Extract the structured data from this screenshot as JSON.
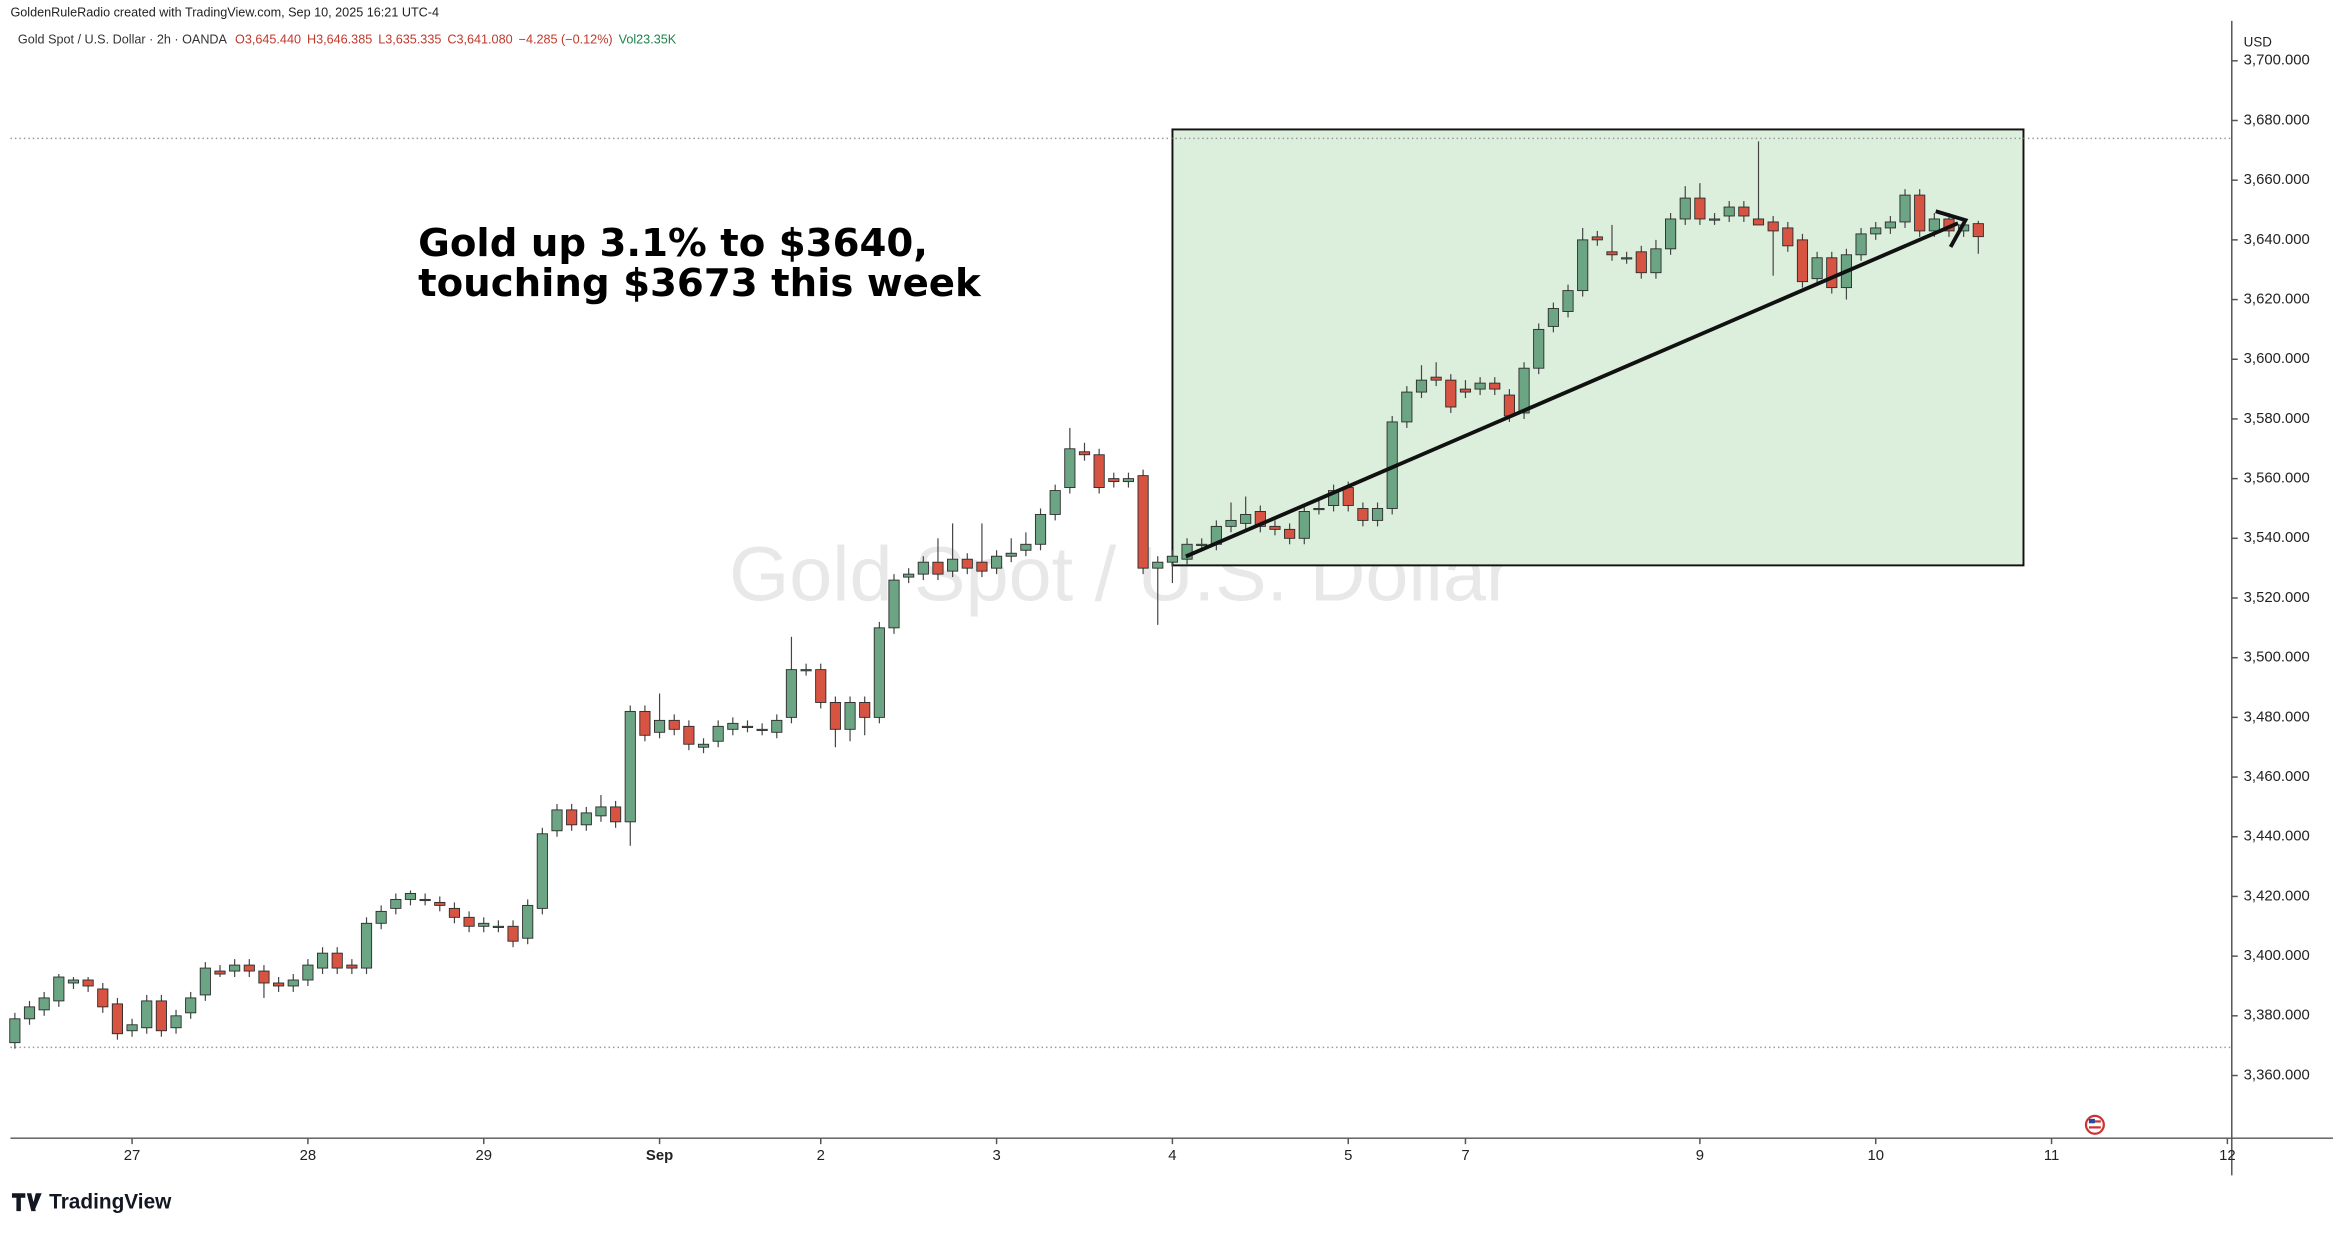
{
  "chart_data": {
    "type": "candlestick",
    "attribution": "GoldenRuleRadio created with TradingView.com, Sep 10, 2025 16:21 UTC-4",
    "title": "Gold Spot / U.S. Dollar · 2h · OANDA",
    "quote": [
      "O3,645.440",
      "H3,646.385",
      "L3,635.335",
      "C3,641.080",
      "−4.285 (−0.12%)",
      "Vol23.35K"
    ],
    "currency": "USD",
    "watermark": "Gold Spot / U.S. Dollar",
    "annotation": [
      "Gold up 3.1% to $3640,",
      "touching $3673 this week"
    ],
    "brand": "TradingView",
    "up_color": "#6ca584",
    "down_color": "#d75442",
    "grid": false,
    "open": [
      3371,
      3379,
      3382,
      3385,
      3391,
      3392,
      3389,
      3384,
      3375,
      3376,
      3385,
      3376,
      3381,
      3387,
      3395,
      3395,
      3397,
      3395,
      3391,
      3390,
      3392,
      3396,
      3401,
      3397,
      3396,
      3411,
      3416,
      3419,
      3419,
      3418,
      3416,
      3413,
      3410,
      3410,
      3410,
      3406,
      3416,
      3442,
      3449,
      3444,
      3447,
      3450,
      3445,
      3482,
      3475,
      3479,
      3477,
      3470,
      3472,
      3476,
      3477,
      3476,
      3475,
      3480,
      3496,
      3496,
      3485,
      3476,
      3485,
      3480,
      3510,
      3527,
      3528,
      3532,
      3529,
      3533,
      3532,
      3530,
      3534,
      3536,
      3538,
      3548,
      3557,
      3569,
      3568,
      3560,
      3559,
      3561,
      3530,
      3532,
      3533,
      3538,
      3538,
      3544,
      3545,
      3549,
      3544,
      3543,
      3540,
      3550,
      3551,
      3557,
      3550,
      3546,
      3550,
      3579,
      3589,
      3594,
      3593,
      3590,
      3590,
      3592,
      3588,
      3582,
      3597,
      3611,
      3616,
      3623,
      3641,
      3636,
      3634,
      3636,
      3629,
      3637,
      3647,
      3654,
      3647,
      3648,
      3651,
      3647,
      3646,
      3644,
      3640,
      3627,
      3634,
      3624,
      3635,
      3642,
      3644,
      3646,
      3655,
      3643,
      3647,
      3643,
      3645.44
    ],
    "high": [
      3381,
      3385,
      3388,
      3394,
      3393,
      3393,
      3391,
      3386,
      3379,
      3387,
      3387,
      3382,
      3388,
      3398,
      3397,
      3399,
      3399,
      3397,
      3393,
      3394,
      3399,
      3403,
      3403,
      3399,
      3413,
      3417,
      3421,
      3422,
      3421,
      3420,
      3418,
      3415,
      3413,
      3412,
      3412,
      3419,
      3443,
      3451,
      3451,
      3450,
      3454,
      3452,
      3484,
      3484,
      3488,
      3481,
      3479,
      3473,
      3479,
      3480,
      3479,
      3478,
      3481,
      3507,
      3498,
      3498,
      3487,
      3487,
      3487,
      3512,
      3528,
      3530,
      3534,
      3540,
      3545,
      3535,
      3545,
      3536,
      3540,
      3542,
      3550,
      3558,
      3577,
      3572,
      3570,
      3562,
      3562,
      3563,
      3534,
      3536,
      3540,
      3540,
      3546,
      3552,
      3554,
      3551,
      3546,
      3545,
      3551,
      3553,
      3558,
      3559,
      3552,
      3552,
      3581,
      3591,
      3598,
      3599,
      3595,
      3593,
      3594,
      3594,
      3590,
      3599,
      3612,
      3619,
      3625,
      3644,
      3643,
      3645,
      3636,
      3638,
      3640,
      3649,
      3658,
      3659,
      3649,
      3653,
      3653,
      3673,
      3648,
      3646,
      3642,
      3636,
      3636,
      3637,
      3644,
      3646,
      3648,
      3657,
      3657,
      3649,
      3649,
      3647,
      3646.385
    ],
    "low": [
      3369,
      3377,
      3380,
      3383,
      3389,
      3388,
      3381,
      3372,
      3373,
      3374,
      3373,
      3374,
      3379,
      3385,
      3393,
      3393,
      3393,
      3386,
      3388,
      3388,
      3390,
      3394,
      3394,
      3394,
      3394,
      3409,
      3414,
      3417,
      3417,
      3415,
      3411,
      3408,
      3408,
      3408,
      3403,
      3404,
      3414,
      3440,
      3442,
      3442,
      3445,
      3443,
      3437,
      3472,
      3473,
      3474,
      3469,
      3468,
      3470,
      3474,
      3475,
      3474,
      3473,
      3478,
      3494,
      3483,
      3470,
      3472,
      3474,
      3478,
      3508,
      3525,
      3526,
      3526,
      3527,
      3528,
      3527,
      3528,
      3532,
      3534,
      3536,
      3546,
      3555,
      3566,
      3555,
      3557,
      3557,
      3528,
      3511,
      3525,
      3531,
      3536,
      3536,
      3542,
      3543,
      3542,
      3541,
      3538,
      3538,
      3548,
      3549,
      3549,
      3544,
      3544,
      3548,
      3577,
      3587,
      3591,
      3582,
      3587,
      3588,
      3588,
      3579,
      3580,
      3595,
      3609,
      3614,
      3621,
      3638,
      3633,
      3632,
      3627,
      3627,
      3635,
      3645,
      3645,
      3645,
      3646,
      3646,
      3645,
      3628,
      3636,
      3624,
      3625,
      3622,
      3620,
      3633,
      3640,
      3642,
      3644,
      3641,
      3641,
      3641,
      3641,
      3635.335
    ],
    "close": [
      3379,
      3383,
      3386,
      3393,
      3392,
      3390,
      3383,
      3374,
      3377,
      3385,
      3375,
      3380,
      3386,
      3396,
      3394,
      3397,
      3395,
      3391,
      3390,
      3392,
      3397,
      3401,
      3396,
      3396,
      3411,
      3415,
      3419,
      3421,
      3419,
      3417,
      3413,
      3410,
      3411,
      3410,
      3405,
      3417,
      3441,
      3449,
      3444,
      3448,
      3450,
      3445,
      3482,
      3474,
      3479,
      3476,
      3471,
      3471,
      3477,
      3478,
      3477,
      3476,
      3479,
      3496,
      3496,
      3485,
      3476,
      3485,
      3480,
      3510,
      3526,
      3528,
      3532,
      3528,
      3533,
      3530,
      3529,
      3534,
      3535,
      3538,
      3548,
      3556,
      3570,
      3568,
      3557,
      3559,
      3560,
      3530,
      3532,
      3534,
      3538,
      3538,
      3544,
      3546,
      3548,
      3544,
      3543,
      3540,
      3549,
      3550,
      3556,
      3551,
      3546,
      3550,
      3579,
      3589,
      3593,
      3593,
      3584,
      3589,
      3592,
      3590,
      3581,
      3597,
      3610,
      3617,
      3623,
      3640,
      3640,
      3635,
      3634,
      3629,
      3637,
      3647,
      3654,
      3647,
      3647,
      3651,
      3648,
      3645,
      3643,
      3638,
      3626,
      3634,
      3624,
      3635,
      3642,
      3644,
      3646,
      3655,
      3643,
      3647,
      3643,
      3645,
      3641.08
    ],
    "xlim": [
      -0.3,
      151.3
    ],
    "xticks": [
      {
        "value": 8,
        "label": "27"
      },
      {
        "value": 20,
        "label": "28"
      },
      {
        "value": 32,
        "label": "29"
      },
      {
        "value": 44,
        "label": "Sep"
      },
      {
        "value": 55,
        "label": "2"
      },
      {
        "value": 67,
        "label": "3"
      },
      {
        "value": 79,
        "label": "4"
      },
      {
        "value": 91,
        "label": "5"
      },
      {
        "value": 99,
        "label": "7"
      },
      {
        "value": 115,
        "label": "9"
      },
      {
        "value": 127,
        "label": "10"
      },
      {
        "value": 139,
        "label": "11"
      },
      {
        "value": 151,
        "label": "12"
      }
    ],
    "ylim": [
      3339,
      3711.4
    ],
    "yticks": [
      {
        "value": 3360,
        "label": "3,360.000"
      },
      {
        "value": 3380,
        "label": "3,380.000"
      },
      {
        "value": 3400,
        "label": "3,400.000"
      },
      {
        "value": 3420,
        "label": "3,420.000"
      },
      {
        "value": 3440,
        "label": "3,440.000"
      },
      {
        "value": 3460,
        "label": "3,460.000"
      },
      {
        "value": 3480,
        "label": "3,480.000"
      },
      {
        "value": 3500,
        "label": "3,500.000"
      },
      {
        "value": 3520,
        "label": "3,520.000"
      },
      {
        "value": 3540,
        "label": "3,540.000"
      },
      {
        "value": 3560,
        "label": "3,560.000"
      },
      {
        "value": 3580,
        "label": "3,580.000"
      },
      {
        "value": 3600,
        "label": "3,600.000"
      },
      {
        "value": 3620,
        "label": "3,620.000"
      },
      {
        "value": 3640,
        "label": "3,640.000"
      },
      {
        "value": 3660,
        "label": "3,660.000"
      },
      {
        "value": 3680,
        "label": "3,680.000"
      },
      {
        "value": 3700,
        "label": "3,700.000"
      }
    ]
  }
}
